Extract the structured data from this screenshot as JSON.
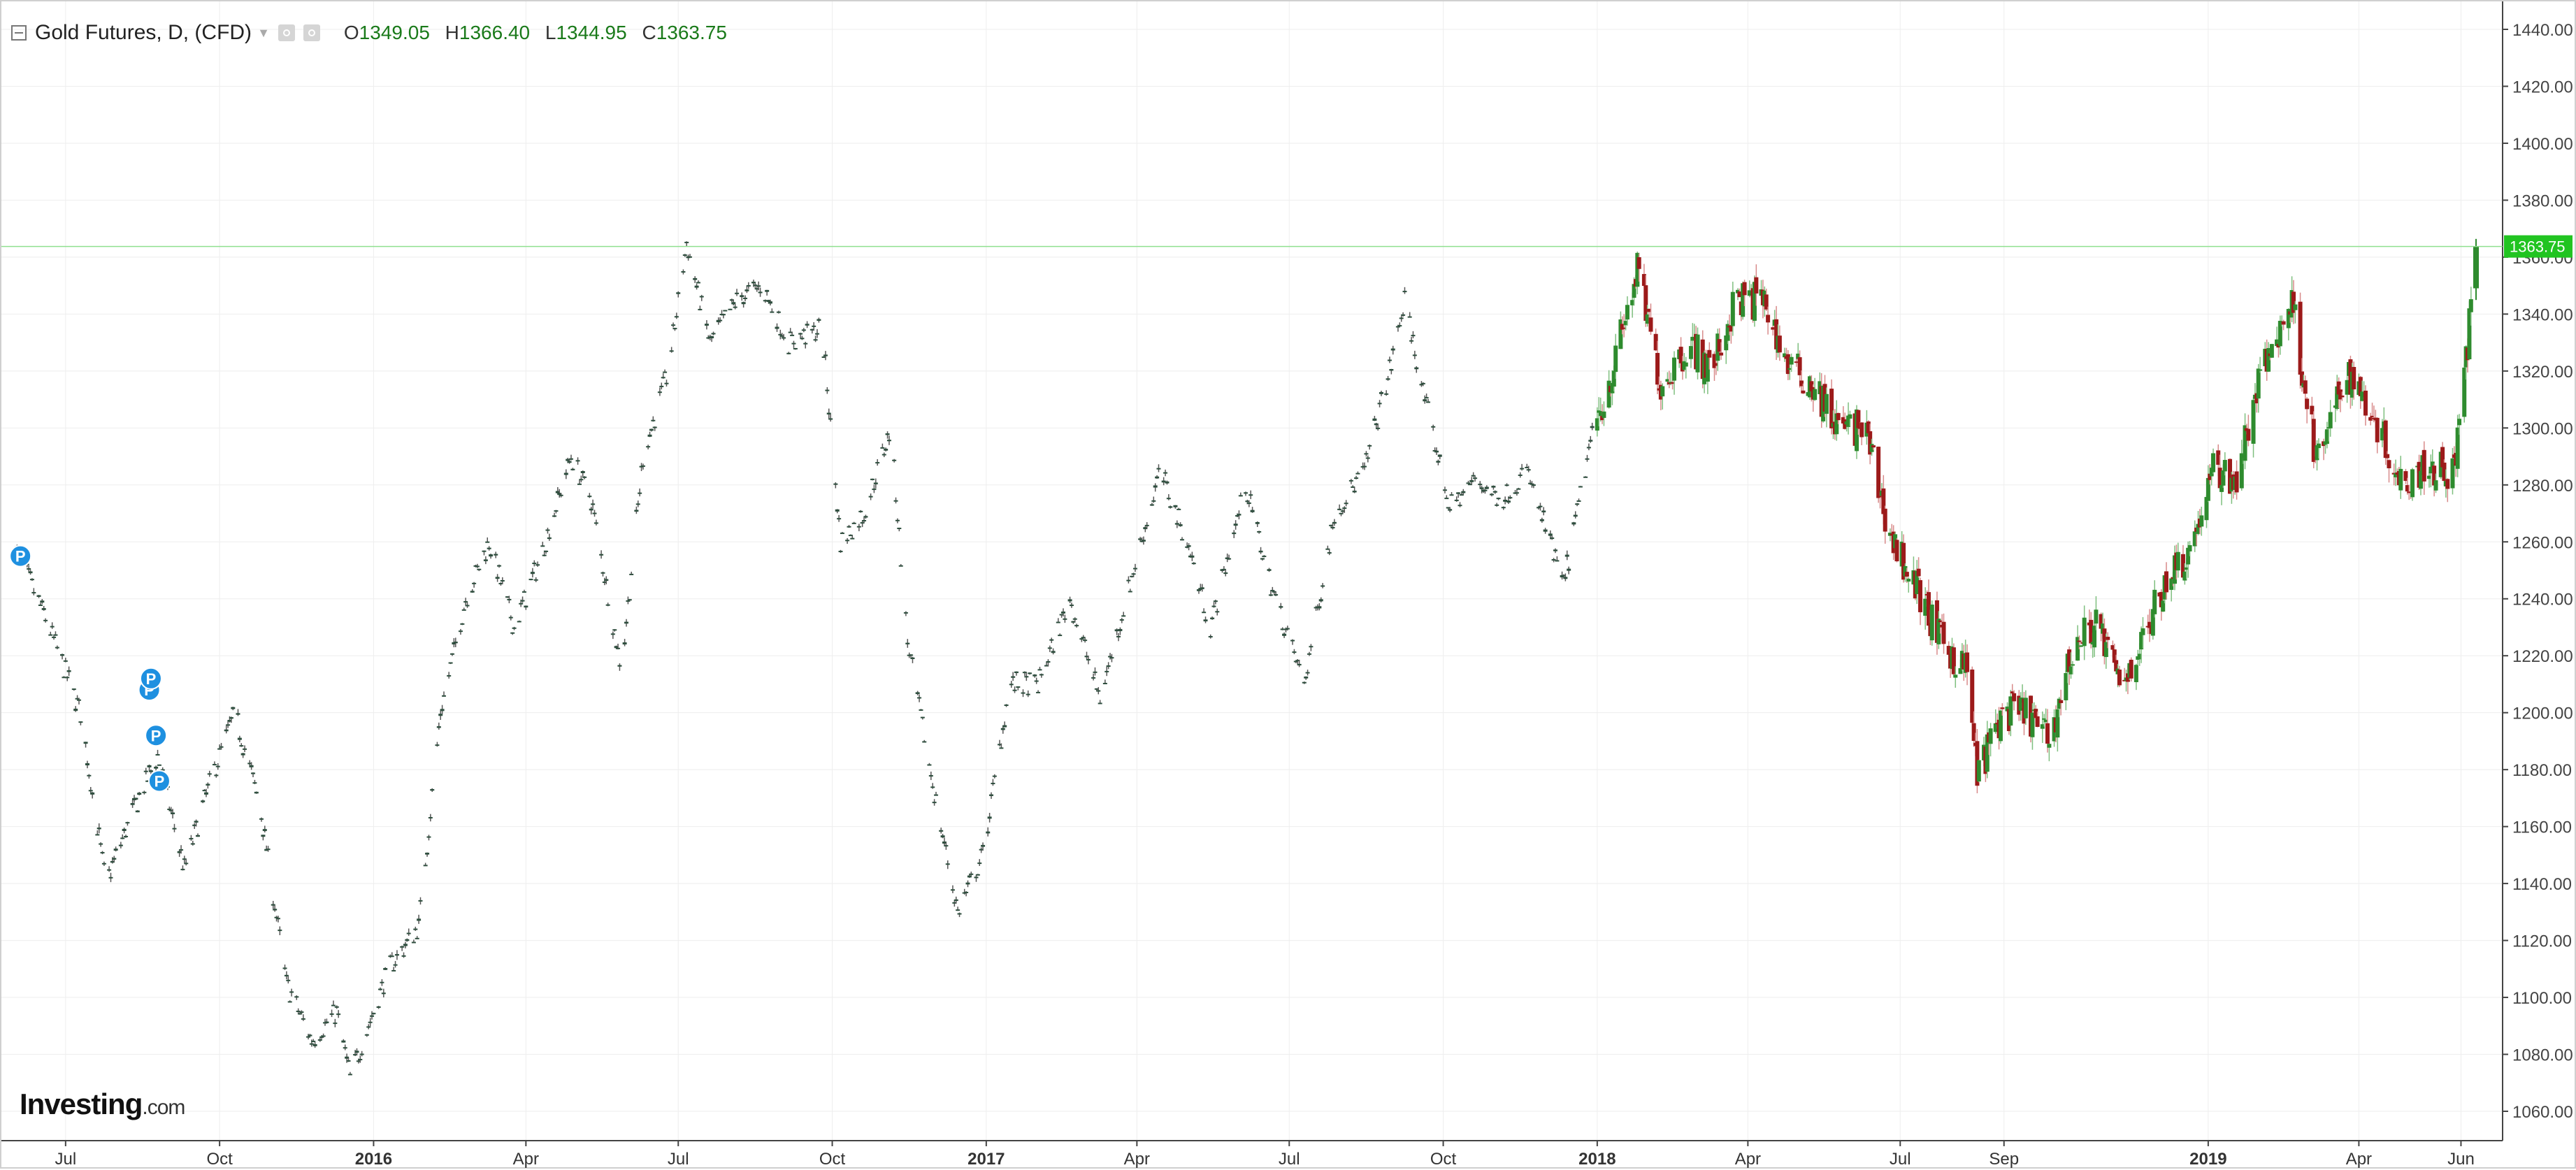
{
  "header": {
    "title": "Gold Futures, D, (CFD)",
    "open_label": "O",
    "open": "1349.05",
    "high_label": "H",
    "high": "1366.40",
    "low_label": "L",
    "low": "1344.95",
    "close_label": "C",
    "close": "1363.75"
  },
  "logo": {
    "brand": "Investing",
    "domain": ".com"
  },
  "colors": {
    "up": "#2e8b2e",
    "down": "#9c1a1a",
    "last_price": "#21c421",
    "marker": "#1e90e0",
    "grid": "#eeeeee"
  },
  "chart_data": {
    "type": "candlestick",
    "symbol": "Gold Futures",
    "interval": "D",
    "ylim": [
      1050,
      1450
    ],
    "y_ticks": [
      1060,
      1080,
      1100,
      1120,
      1140,
      1160,
      1180,
      1200,
      1220,
      1240,
      1260,
      1280,
      1300,
      1320,
      1340,
      1360,
      1380,
      1400,
      1420,
      1440
    ],
    "y_tick_labels": [
      "1060.00",
      "1080.00",
      "1100.00",
      "1120.00",
      "1140.00",
      "1160.00",
      "1180.00",
      "1200.00",
      "1220.00",
      "1240.00",
      "1260.00",
      "1280.00",
      "1300.00",
      "1320.00",
      "1340.00",
      "1360.00",
      "1380.00",
      "1400.00",
      "1420.00",
      "1440.00"
    ],
    "x_range": [
      "2015-06-01",
      "2019-06-10"
    ],
    "x_ticks": [
      {
        "date": "2015-07-01",
        "label": "Jul",
        "bold": false
      },
      {
        "date": "2015-10-01",
        "label": "Oct",
        "bold": false
      },
      {
        "date": "2016-01-01",
        "label": "2016",
        "bold": true
      },
      {
        "date": "2016-04-01",
        "label": "Apr",
        "bold": false
      },
      {
        "date": "2016-07-01",
        "label": "Jul",
        "bold": false
      },
      {
        "date": "2016-10-01",
        "label": "Oct",
        "bold": false
      },
      {
        "date": "2017-01-01",
        "label": "2017",
        "bold": true
      },
      {
        "date": "2017-04-01",
        "label": "Apr",
        "bold": false
      },
      {
        "date": "2017-07-01",
        "label": "Jul",
        "bold": false
      },
      {
        "date": "2017-10-01",
        "label": "Oct",
        "bold": false
      },
      {
        "date": "2018-01-01",
        "label": "2018",
        "bold": true
      },
      {
        "date": "2018-04-01",
        "label": "Apr",
        "bold": false
      },
      {
        "date": "2018-07-01",
        "label": "Jul",
        "bold": false
      },
      {
        "date": "2018-09-01",
        "label": "Sep",
        "bold": false
      },
      {
        "date": "2019-01-01",
        "label": "2019",
        "bold": true
      },
      {
        "date": "2019-04-01",
        "label": "Apr",
        "bold": false
      },
      {
        "date": "2019-06-01",
        "label": "Jun",
        "bold": false
      }
    ],
    "close_anchors": [
      [
        "2015-06-01",
        1258
      ],
      [
        "2015-06-20",
        1232
      ],
      [
        "2015-07-10",
        1200
      ],
      [
        "2015-07-25",
        1140
      ],
      [
        "2015-08-10",
        1165
      ],
      [
        "2015-08-25",
        1185
      ],
      [
        "2015-09-10",
        1145
      ],
      [
        "2015-09-25",
        1175
      ],
      [
        "2015-10-10",
        1200
      ],
      [
        "2015-10-25",
        1168
      ],
      [
        "2015-11-10",
        1105
      ],
      [
        "2015-11-25",
        1085
      ],
      [
        "2015-12-10",
        1095
      ],
      [
        "2015-12-18",
        1072
      ],
      [
        "2016-01-10",
        1110
      ],
      [
        "2016-01-28",
        1125
      ],
      [
        "2016-02-10",
        1200
      ],
      [
        "2016-02-25",
        1240
      ],
      [
        "2016-03-10",
        1260
      ],
      [
        "2016-03-25",
        1230
      ],
      [
        "2016-04-10",
        1255
      ],
      [
        "2016-04-28",
        1290
      ],
      [
        "2016-05-10",
        1275
      ],
      [
        "2016-05-28",
        1215
      ],
      [
        "2016-06-10",
        1290
      ],
      [
        "2016-06-25",
        1320
      ],
      [
        "2016-07-06",
        1365
      ],
      [
        "2016-07-20",
        1330
      ],
      [
        "2016-08-05",
        1345
      ],
      [
        "2016-08-20",
        1350
      ],
      [
        "2016-09-05",
        1330
      ],
      [
        "2016-09-25",
        1335
      ],
      [
        "2016-10-06",
        1260
      ],
      [
        "2016-10-20",
        1270
      ],
      [
        "2016-11-05",
        1300
      ],
      [
        "2016-11-15",
        1225
      ],
      [
        "2016-11-30",
        1175
      ],
      [
        "2016-12-15",
        1130
      ],
      [
        "2016-12-30",
        1150
      ],
      [
        "2017-01-15",
        1210
      ],
      [
        "2017-02-01",
        1210
      ],
      [
        "2017-02-20",
        1240
      ],
      [
        "2017-03-10",
        1205
      ],
      [
        "2017-03-30",
        1250
      ],
      [
        "2017-04-15",
        1285
      ],
      [
        "2017-05-01",
        1260
      ],
      [
        "2017-05-15",
        1230
      ],
      [
        "2017-06-05",
        1280
      ],
      [
        "2017-06-20",
        1245
      ],
      [
        "2017-07-10",
        1210
      ],
      [
        "2017-07-28",
        1270
      ],
      [
        "2017-08-15",
        1285
      ],
      [
        "2017-09-01",
        1325
      ],
      [
        "2017-09-08",
        1345
      ],
      [
        "2017-09-20",
        1310
      ],
      [
        "2017-10-05",
        1272
      ],
      [
        "2017-10-20",
        1282
      ],
      [
        "2017-11-05",
        1275
      ],
      [
        "2017-11-20",
        1285
      ],
      [
        "2017-12-12",
        1245
      ],
      [
        "2017-12-28",
        1295
      ],
      [
        "2018-01-10",
        1320
      ],
      [
        "2018-01-25",
        1355
      ],
      [
        "2018-02-08",
        1315
      ],
      [
        "2018-02-25",
        1330
      ],
      [
        "2018-03-10",
        1320
      ],
      [
        "2018-03-25",
        1345
      ],
      [
        "2018-04-10",
        1345
      ],
      [
        "2018-04-25",
        1322
      ],
      [
        "2018-05-10",
        1315
      ],
      [
        "2018-05-25",
        1300
      ],
      [
        "2018-06-10",
        1300
      ],
      [
        "2018-06-25",
        1262
      ],
      [
        "2018-07-10",
        1245
      ],
      [
        "2018-07-25",
        1225
      ],
      [
        "2018-08-10",
        1215
      ],
      [
        "2018-08-16",
        1178
      ],
      [
        "2018-08-31",
        1200
      ],
      [
        "2018-09-15",
        1200
      ],
      [
        "2018-09-28",
        1190
      ],
      [
        "2018-10-12",
        1222
      ],
      [
        "2018-10-26",
        1232
      ],
      [
        "2018-11-09",
        1210
      ],
      [
        "2018-11-23",
        1225
      ],
      [
        "2018-12-07",
        1248
      ],
      [
        "2018-12-21",
        1257
      ],
      [
        "2019-01-04",
        1285
      ],
      [
        "2019-01-18",
        1282
      ],
      [
        "2019-02-01",
        1318
      ],
      [
        "2019-02-20",
        1345
      ],
      [
        "2019-03-07",
        1287
      ],
      [
        "2019-03-25",
        1320
      ],
      [
        "2019-04-10",
        1305
      ],
      [
        "2019-04-25",
        1282
      ],
      [
        "2019-05-10",
        1287
      ],
      [
        "2019-05-28",
        1285
      ],
      [
        "2019-06-05",
        1330
      ],
      [
        "2019-06-10",
        1363
      ]
    ],
    "last": {
      "date": "2019-06-10",
      "open": 1349.05,
      "high": 1366.4,
      "low": 1344.95,
      "close": 1363.75,
      "label": "1363.75"
    },
    "event_markers": [
      {
        "date": "2015-06-04",
        "price": 1255,
        "label": "P"
      },
      {
        "date": "2015-08-20",
        "price": 1208,
        "label": "P"
      },
      {
        "date": "2015-08-21",
        "price": 1212,
        "label": "P"
      },
      {
        "date": "2015-08-24",
        "price": 1192,
        "label": "P"
      },
      {
        "date": "2015-08-26",
        "price": 1176,
        "label": "P"
      }
    ],
    "grid": true
  }
}
